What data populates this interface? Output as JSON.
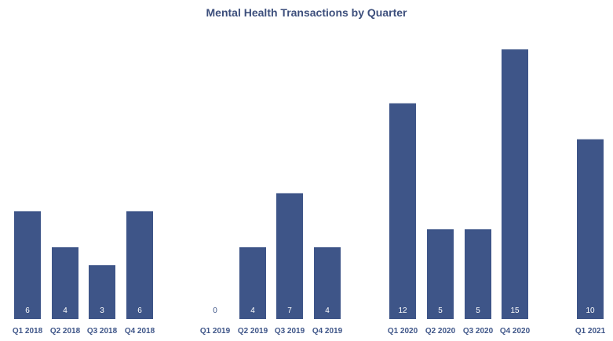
{
  "chart_data": {
    "type": "bar",
    "title": "Mental Health Transactions by Quarter",
    "xlabel": "",
    "ylabel": "",
    "ylim": [
      0,
      15
    ],
    "grid": false,
    "legend": "none",
    "colors": {
      "bar": "#3e5588",
      "label_inside": "#ffffff",
      "label_zero": "#3e5588",
      "category_label": "#3e5588",
      "title": "#3d4f7c"
    },
    "categories": [
      "Q1 2018",
      "Q2 2018",
      "Q3 2018",
      "Q4 2018",
      "Q1 2019",
      "Q2 2019",
      "Q3 2019",
      "Q4 2019",
      "Q1 2020",
      "Q2 2020",
      "Q3 2020",
      "Q4 2020",
      "Q1 2021"
    ],
    "values": [
      6,
      4,
      3,
      6,
      0,
      4,
      7,
      4,
      12,
      5,
      5,
      15,
      10
    ]
  }
}
